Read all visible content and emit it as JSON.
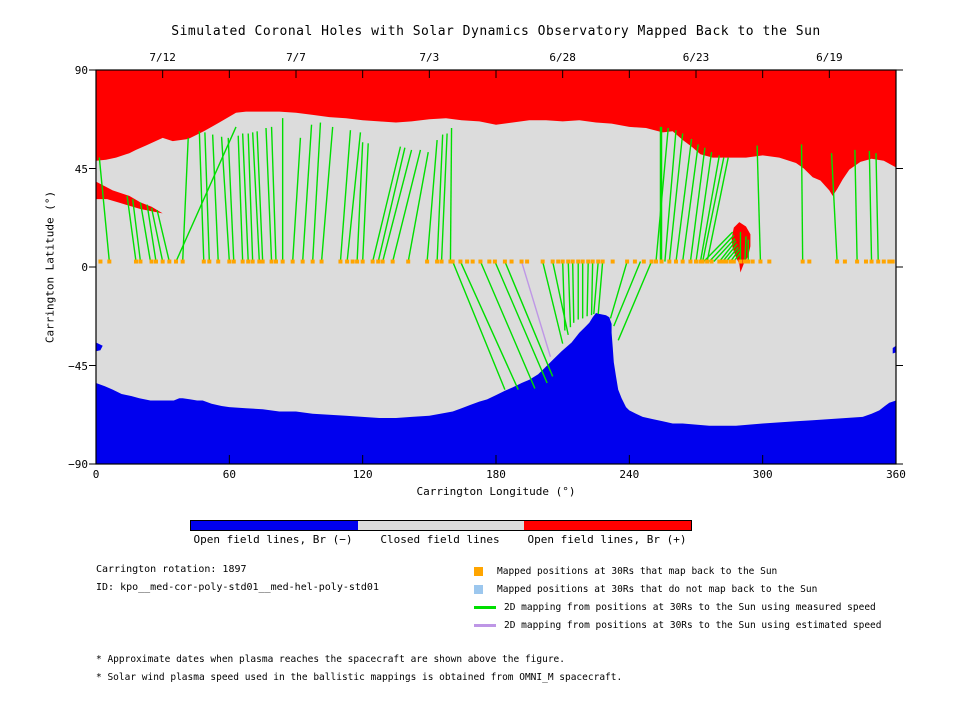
{
  "title": "Simulated Coronal Holes with Solar Dynamics Observatory Mapped Back to the Sun",
  "colors": {
    "open_negative": "#0000EE",
    "closed": "#DCDCDC",
    "open_positive": "#FF0000",
    "measured_line": "#00DE00",
    "estimated_line": "#BE96E6",
    "marker_mapped": "#FFA500",
    "marker_unmapped": "#9CC7EE",
    "axis": "#000000"
  },
  "chart_data": {
    "type": "map",
    "title": "Simulated Coronal Holes with Solar Dynamics Observatory Mapped Back to the Sun",
    "top_axis": {
      "dates": [
        "7/12",
        "7/7",
        "7/3",
        "6/28",
        "6/23",
        "6/19"
      ],
      "date_lons": [
        30,
        90,
        150,
        210,
        270,
        330
      ],
      "tick_step_deg": 30
    },
    "x_axis": {
      "label": "Carrington Longitude (°)",
      "ticks": [
        0,
        60,
        120,
        180,
        240,
        300,
        360
      ],
      "range": [
        0,
        360
      ]
    },
    "y_axis": {
      "label": "Carrington Latitude (°)",
      "ticks": [
        90,
        45,
        0,
        -45,
        -90
      ],
      "range": [
        -90,
        90
      ]
    },
    "marker_lat": 2.5,
    "mapped_marker_lons": [
      2,
      6,
      18,
      20,
      25,
      27,
      30,
      33,
      36,
      39,
      48.5,
      51,
      55,
      60,
      62,
      66,
      68.5,
      70.5,
      73.5,
      75,
      79,
      81,
      84,
      88.5,
      93,
      97.5,
      101.5,
      110,
      113,
      115.5,
      117.5,
      120,
      124.5,
      127,
      129,
      133.5,
      140.5,
      149,
      153.5,
      155.5,
      159.5,
      160.5,
      164,
      167,
      169.5,
      173,
      177,
      179.5,
      184,
      187,
      191.5,
      194,
      201,
      205.5,
      208,
      210,
      212.5,
      214.5,
      217,
      219,
      221.5,
      223.5,
      226,
      228,
      232.5,
      239,
      242.5,
      246.5,
      250,
      252,
      254.5,
      258,
      261,
      264,
      267.5,
      270,
      272,
      273,
      275,
      277,
      280.5,
      282,
      283.5,
      285.5,
      287,
      290,
      292,
      293.5,
      295.5,
      299,
      303,
      318,
      321,
      333.5,
      337,
      342.5,
      346.5,
      349,
      352,
      354.5,
      357,
      358.5
    ],
    "north_mappings": [
      [
        6,
        1.5,
        50
      ],
      [
        18,
        14,
        32.5
      ],
      [
        20,
        16.5,
        31
      ],
      [
        24.5,
        20,
        29.5
      ],
      [
        27,
        23,
        28.5
      ],
      [
        30,
        25,
        27
      ],
      [
        33,
        27.5,
        26
      ],
      [
        36,
        63,
        64
      ],
      [
        39,
        41.5,
        59
      ],
      [
        48.5,
        46.5,
        62
      ],
      [
        51,
        49,
        61.5
      ],
      [
        55,
        52.5,
        60.5
      ],
      [
        60,
        56.5,
        59.5
      ],
      [
        62,
        59.5,
        59
      ],
      [
        66,
        64,
        60
      ],
      [
        68.5,
        66,
        61
      ],
      [
        70.5,
        68.5,
        61
      ],
      [
        73.5,
        70.5,
        61.5
      ],
      [
        75,
        72.5,
        62
      ],
      [
        79,
        76.5,
        63.5
      ],
      [
        81,
        79,
        64
      ],
      [
        84,
        84,
        68
      ],
      [
        88.5,
        92,
        59
      ],
      [
        93,
        97,
        65
      ],
      [
        97.5,
        101,
        66
      ],
      [
        101.5,
        106.5,
        64
      ],
      [
        110,
        114.5,
        62.5
      ],
      [
        113,
        119,
        61.5
      ],
      [
        117.5,
        120,
        57
      ],
      [
        120,
        122.5,
        56.5
      ],
      [
        124.5,
        137,
        55
      ],
      [
        127,
        139,
        54.5
      ],
      [
        129,
        142,
        53.5
      ],
      [
        133.5,
        146,
        53.5
      ],
      [
        140.5,
        149.5,
        52.5
      ],
      [
        149,
        153.5,
        58
      ],
      [
        153.5,
        156,
        60.5
      ],
      [
        155.5,
        158,
        61
      ],
      [
        159.5,
        160,
        63.5
      ],
      [
        254,
        254,
        64
      ],
      [
        254.5,
        254.5,
        64
      ],
      [
        252,
        257.5,
        63.5
      ],
      [
        256,
        261,
        62.5
      ],
      [
        258,
        264,
        61
      ],
      [
        261,
        268,
        58.5
      ],
      [
        264,
        271,
        56
      ],
      [
        267.5,
        274,
        54.5
      ],
      [
        270,
        277,
        52.5
      ],
      [
        272,
        280.5,
        51
      ],
      [
        273,
        282.5,
        50
      ],
      [
        275,
        284.5,
        50
      ],
      [
        273.5,
        286.5,
        16
      ],
      [
        276,
        287,
        14.5
      ],
      [
        278,
        287.5,
        13
      ],
      [
        280.5,
        288,
        12
      ],
      [
        282,
        288.5,
        10.5
      ],
      [
        283.5,
        289,
        9
      ],
      [
        285.5,
        289.5,
        8
      ],
      [
        287,
        290,
        6.5
      ],
      [
        290,
        290,
        16
      ],
      [
        292,
        292.5,
        14
      ],
      [
        293.5,
        293.5,
        12.5
      ],
      [
        299,
        297.5,
        55.5
      ],
      [
        318,
        317.5,
        56
      ],
      [
        333.5,
        331,
        52
      ],
      [
        342.5,
        341.5,
        53.5
      ],
      [
        349,
        348,
        53
      ],
      [
        352,
        351,
        52
      ]
    ],
    "south_mappings": [
      [
        160.5,
        184,
        -56
      ],
      [
        164,
        190,
        -56
      ],
      [
        173,
        197.5,
        -55.5
      ],
      [
        179.5,
        203,
        -53
      ],
      [
        184,
        205.5,
        -50
      ],
      [
        201,
        210,
        -35
      ],
      [
        205.5,
        212.5,
        -31
      ],
      [
        210,
        211,
        -29
      ],
      [
        212.5,
        213.5,
        -27.5
      ],
      [
        214.5,
        215,
        -25.5
      ],
      [
        217,
        217,
        -24
      ],
      [
        219,
        219,
        -23.5
      ],
      [
        221.5,
        221,
        -22.5
      ],
      [
        223.5,
        223,
        -22
      ],
      [
        226,
        224,
        -21.5
      ],
      [
        228,
        226,
        -21.5
      ],
      [
        239,
        231.5,
        -23.5
      ],
      [
        245,
        233,
        -27
      ],
      [
        250,
        235,
        -33.5
      ]
    ],
    "estimated_mappings": [
      [
        191.5,
        204.5,
        -41
      ]
    ],
    "regions": {
      "north_open_boundary": [
        [
          0,
          48.5
        ],
        [
          4.5,
          49
        ],
        [
          9,
          50
        ],
        [
          15,
          52
        ],
        [
          18,
          53.5
        ],
        [
          22.5,
          55.5
        ],
        [
          30,
          59
        ],
        [
          34.5,
          57.5
        ],
        [
          41.5,
          58.5
        ],
        [
          48.5,
          62
        ],
        [
          55.5,
          66
        ],
        [
          63,
          70.5
        ],
        [
          67.5,
          71
        ],
        [
          75,
          71
        ],
        [
          82.5,
          71
        ],
        [
          90,
          70.5
        ],
        [
          97.5,
          69.5
        ],
        [
          105,
          68.5
        ],
        [
          112.5,
          68
        ],
        [
          120,
          67
        ],
        [
          127.5,
          66.5
        ],
        [
          135,
          66
        ],
        [
          142,
          66.5
        ],
        [
          150,
          67.5
        ],
        [
          157.5,
          68
        ],
        [
          164.5,
          67
        ],
        [
          172.5,
          66.5
        ],
        [
          180,
          65
        ],
        [
          187.5,
          66
        ],
        [
          195,
          67
        ],
        [
          202.5,
          67
        ],
        [
          210,
          66.5
        ],
        [
          217.5,
          67
        ],
        [
          225,
          66
        ],
        [
          232,
          65.5
        ],
        [
          240,
          64
        ],
        [
          247.5,
          63.5
        ],
        [
          255,
          61.5
        ],
        [
          259.5,
          62
        ],
        [
          264,
          58
        ],
        [
          268,
          55
        ],
        [
          272,
          51.5
        ],
        [
          277.5,
          50
        ],
        [
          285,
          50
        ],
        [
          292.5,
          50
        ],
        [
          300,
          51
        ],
        [
          307.5,
          50
        ],
        [
          315,
          47.5
        ],
        [
          318.5,
          45
        ],
        [
          322.5,
          41
        ],
        [
          326,
          39.5
        ],
        [
          330,
          35
        ],
        [
          331.5,
          32.5
        ],
        [
          333.5,
          35.5
        ],
        [
          336,
          40
        ],
        [
          339,
          44.5
        ],
        [
          344,
          48
        ],
        [
          349,
          49.5
        ],
        [
          354.5,
          48.5
        ],
        [
          360,
          45.5
        ]
      ],
      "north_tongue": [
        [
          0,
          39
        ],
        [
          7.5,
          35
        ],
        [
          15,
          32.5
        ],
        [
          20,
          29.5
        ],
        [
          25,
          27.5
        ],
        [
          30,
          24.5
        ],
        [
          25,
          25.5
        ],
        [
          20,
          26.5
        ],
        [
          15,
          28
        ],
        [
          10,
          29.5
        ],
        [
          5,
          31
        ],
        [
          0,
          31
        ]
      ],
      "north_blob": [
        [
          289.5,
          20.5
        ],
        [
          287,
          18
        ],
        [
          286,
          13
        ],
        [
          286.5,
          8.5
        ],
        [
          288,
          4.5
        ],
        [
          289.5,
          1.5
        ],
        [
          290,
          -2.5
        ],
        [
          291.5,
          1.5
        ],
        [
          293.5,
          5
        ],
        [
          294.5,
          9.5
        ],
        [
          294.5,
          15
        ],
        [
          292.5,
          18.5
        ]
      ],
      "south_open_boundary": [
        [
          0,
          -53
        ],
        [
          4,
          -54.5
        ],
        [
          7.5,
          -56
        ],
        [
          11.5,
          -58
        ],
        [
          16,
          -59
        ],
        [
          19.5,
          -60
        ],
        [
          24.5,
          -61
        ],
        [
          29,
          -61
        ],
        [
          32.5,
          -61
        ],
        [
          35,
          -61
        ],
        [
          37.5,
          -60
        ],
        [
          39,
          -60
        ],
        [
          42.5,
          -60.5
        ],
        [
          45.5,
          -61
        ],
        [
          48,
          -61
        ],
        [
          52,
          -62.5
        ],
        [
          56.5,
          -63.5
        ],
        [
          60,
          -64
        ],
        [
          67.5,
          -64.5
        ],
        [
          75,
          -65
        ],
        [
          82.5,
          -66
        ],
        [
          90,
          -66
        ],
        [
          97.5,
          -67
        ],
        [
          105,
          -67.5
        ],
        [
          112.5,
          -68
        ],
        [
          120,
          -68.5
        ],
        [
          127.5,
          -69
        ],
        [
          135,
          -69
        ],
        [
          142,
          -68.5
        ],
        [
          150,
          -68
        ],
        [
          155,
          -67
        ],
        [
          160.5,
          -66
        ],
        [
          164.5,
          -64.5
        ],
        [
          168.5,
          -63
        ],
        [
          172.5,
          -61.5
        ],
        [
          176,
          -60.5
        ],
        [
          180,
          -58.5
        ],
        [
          184,
          -56.5
        ],
        [
          187.5,
          -55
        ],
        [
          191.5,
          -53
        ],
        [
          195,
          -51.5
        ],
        [
          199,
          -49
        ],
        [
          202.5,
          -45.5
        ],
        [
          206,
          -42
        ],
        [
          209.5,
          -38.5
        ],
        [
          214,
          -34.5
        ],
        [
          217.5,
          -30
        ],
        [
          220,
          -27.5
        ],
        [
          222,
          -25.5
        ],
        [
          223.5,
          -23
        ],
        [
          225,
          -21
        ],
        [
          227,
          -21.5
        ],
        [
          229.5,
          -22
        ],
        [
          231,
          -23
        ],
        [
          232,
          -26
        ],
        [
          232,
          -30
        ],
        [
          232.5,
          -36.5
        ],
        [
          233,
          -43.5
        ],
        [
          234,
          -50
        ],
        [
          235,
          -56
        ],
        [
          236.5,
          -60
        ],
        [
          238.5,
          -64
        ],
        [
          240,
          -65.5
        ],
        [
          243,
          -67
        ],
        [
          246,
          -68.5
        ],
        [
          250.5,
          -69.5
        ],
        [
          255,
          -70.5
        ],
        [
          259.5,
          -71.5
        ],
        [
          264,
          -71.5
        ],
        [
          270,
          -72
        ],
        [
          276,
          -72.5
        ],
        [
          282,
          -72.5
        ],
        [
          288,
          -72.5
        ],
        [
          294,
          -72
        ],
        [
          300,
          -71.5
        ],
        [
          307.5,
          -71
        ],
        [
          315,
          -70.5
        ],
        [
          322.5,
          -70
        ],
        [
          330,
          -69.5
        ],
        [
          337.5,
          -69
        ],
        [
          345,
          -68.5
        ],
        [
          349,
          -67
        ],
        [
          352.5,
          -65.5
        ],
        [
          355,
          -63.5
        ],
        [
          357,
          -62
        ],
        [
          360,
          -61
        ]
      ],
      "south_speck_left": [
        [
          0,
          -34.5
        ],
        [
          3,
          -36
        ],
        [
          2,
          -38
        ],
        [
          0,
          -38.5
        ]
      ],
      "south_speck_right": [
        [
          358.5,
          -37
        ],
        [
          360,
          -36
        ],
        [
          360,
          -39
        ],
        [
          358.5,
          -39.5
        ]
      ]
    }
  },
  "color_bar": {
    "segments": [
      {
        "label": "Open field lines, Br (−)",
        "color": "#0000EE"
      },
      {
        "label": "Closed field lines",
        "color": "#DCDCDC"
      },
      {
        "label": "Open field lines, Br (+)",
        "color": "#FF0000"
      }
    ]
  },
  "info": {
    "rotation": "Carrington rotation: 1897",
    "id": "ID: kpo__med-cor-poly-std01__med-hel-poly-std01"
  },
  "legend": {
    "items": [
      {
        "swatch": "square",
        "color": "#FFA500",
        "label": "Mapped positions at 30Rs that map back to the Sun"
      },
      {
        "swatch": "square",
        "color": "#9CC7EE",
        "label": "Mapped positions at 30Rs that do not map back to the Sun"
      },
      {
        "swatch": "line",
        "color": "#00DE00",
        "label": "2D mapping from positions at 30Rs to the Sun using measured speed"
      },
      {
        "swatch": "line",
        "color": "#BE96E6",
        "label": "2D mapping from positions at 30Rs to the Sun using estimated speed"
      }
    ]
  },
  "footnotes": [
    "* Approximate dates when plasma reaches the spacecraft are shown above the figure.",
    "* Solar wind plasma speed used in the ballistic mappings is obtained from OMNI_M spacecraft."
  ]
}
